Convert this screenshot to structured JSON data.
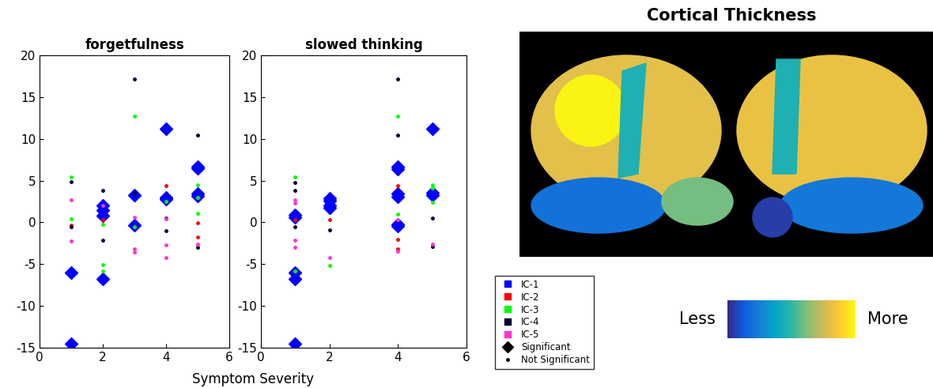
{
  "chart_data": [
    {
      "type": "scatter",
      "title": "forgetfulness",
      "xlim": [
        0,
        6
      ],
      "xticks": [
        0,
        2,
        4,
        6
      ],
      "ylim": [
        -15,
        20
      ],
      "yticks": [
        -15,
        -10,
        -5,
        0,
        5,
        10,
        15,
        20
      ],
      "series": [
        {
          "name": "IC-1",
          "color": "#0000ff",
          "x": [
            1,
            1,
            2,
            2,
            2,
            2,
            3,
            3,
            4,
            4,
            4,
            5,
            5,
            5,
            5
          ],
          "values": [
            -6.0,
            -14.5,
            2.0,
            1.5,
            0.8,
            -6.8,
            3.3,
            -0.3,
            11.2,
            3.0,
            2.8,
            6.7,
            6.5,
            3.4,
            3.2
          ],
          "significant": [
            true,
            true,
            true,
            true,
            true,
            true,
            true,
            true,
            true,
            true,
            true,
            true,
            true,
            true,
            true
          ]
        },
        {
          "name": "IC-2",
          "color": "#ff0000",
          "x": [
            1,
            2,
            4,
            5,
            5
          ],
          "values": [
            -0.3,
            0.3,
            4.4,
            -0.1,
            -1.8
          ],
          "significant": [
            false,
            false,
            false,
            false,
            false
          ]
        },
        {
          "name": "IC-3",
          "color": "#00ff00",
          "x": [
            1,
            1,
            2,
            2,
            2,
            3,
            3,
            4,
            5,
            5,
            5
          ],
          "values": [
            5.4,
            0.4,
            -0.2,
            -5.1,
            -5.8,
            12.7,
            -0.5,
            2.5,
            4.5,
            3.0,
            1.1
          ],
          "significant": [
            false,
            false,
            false,
            false,
            false,
            false,
            false,
            false,
            false,
            false,
            false
          ]
        },
        {
          "name": "IC-4",
          "color": "#000033",
          "x": [
            1,
            1,
            2,
            2,
            3,
            3,
            4,
            4,
            5,
            5
          ],
          "values": [
            4.9,
            -0.5,
            3.8,
            -2.1,
            17.2,
            3.5,
            0.5,
            -1.0,
            10.4,
            -3.0
          ],
          "significant": [
            false,
            false,
            false,
            false,
            false,
            false,
            false,
            false,
            false,
            false
          ]
        },
        {
          "name": "IC-5",
          "color": "#ff33cc",
          "x": [
            1,
            1,
            2,
            3,
            3,
            3,
            4,
            4,
            4,
            5
          ],
          "values": [
            2.7,
            -2.2,
            2.0,
            0.6,
            -3.2,
            -3.6,
            0.4,
            -2.7,
            -4.2,
            -2.6
          ],
          "significant": [
            false,
            false,
            false,
            false,
            false,
            false,
            false,
            false,
            false,
            false
          ]
        }
      ]
    },
    {
      "type": "scatter",
      "title": "slowed thinking",
      "xlim": [
        0,
        6
      ],
      "xticks": [
        0,
        2,
        4,
        6
      ],
      "ylim": [
        -15,
        20
      ],
      "yticks": [
        -15,
        -10,
        -5,
        0,
        5,
        10,
        15,
        20
      ],
      "series": [
        {
          "name": "IC-1",
          "color": "#0000ff",
          "x": [
            1,
            1,
            1,
            1,
            1,
            2,
            2,
            2,
            2,
            4,
            4,
            4,
            4,
            4,
            4,
            5,
            5,
            5
          ],
          "values": [
            0.9,
            0.6,
            -6.0,
            -6.8,
            -14.5,
            2.9,
            2.6,
            2.0,
            1.7,
            6.7,
            6.4,
            3.4,
            3.1,
            -0.2,
            -0.4,
            11.2,
            3.5,
            3.3
          ],
          "significant": [
            true,
            true,
            true,
            true,
            true,
            true,
            true,
            true,
            true,
            true,
            true,
            true,
            true,
            true,
            true,
            true,
            true,
            true
          ]
        },
        {
          "name": "IC-2",
          "color": "#ff0000",
          "x": [
            1,
            2,
            4,
            4,
            4
          ],
          "values": [
            0.3,
            0.3,
            4.4,
            -2.0,
            -3.2
          ],
          "significant": [
            false,
            false,
            false,
            false,
            false
          ]
        },
        {
          "name": "IC-3",
          "color": "#00ff00",
          "x": [
            1,
            1,
            2,
            4,
            4,
            5,
            5,
            5
          ],
          "values": [
            5.4,
            -5.8,
            -5.2,
            12.7,
            1.0,
            4.5,
            4.1,
            2.4
          ],
          "significant": [
            false,
            false,
            false,
            false,
            false,
            false,
            false,
            false
          ]
        },
        {
          "name": "IC-4",
          "color": "#000033",
          "x": [
            1,
            1,
            1,
            2,
            4,
            4,
            5,
            5
          ],
          "values": [
            4.8,
            3.8,
            -0.5,
            -0.9,
            17.2,
            10.4,
            0.5,
            -2.9
          ],
          "significant": [
            false,
            false,
            false,
            false,
            false,
            false,
            false,
            false
          ]
        },
        {
          "name": "IC-5",
          "color": "#ff33cc",
          "x": [
            1,
            1,
            1,
            1,
            2,
            4,
            4,
            5
          ],
          "values": [
            2.7,
            2.3,
            -2.1,
            -3.0,
            -4.2,
            0.3,
            -3.5,
            -2.6
          ],
          "significant": [
            false,
            false,
            false,
            false,
            false,
            false,
            false,
            false
          ]
        }
      ]
    }
  ],
  "figure": {
    "shared_xlabel": "Symptom Severity",
    "marker_legend": [
      {
        "name": "Significant",
        "marker": "diamond"
      },
      {
        "name": "Not Significant",
        "marker": "point"
      }
    ],
    "brain_title": "Cortical Thickness",
    "colorbar": {
      "low_label": "Less",
      "high_label": "More"
    }
  }
}
